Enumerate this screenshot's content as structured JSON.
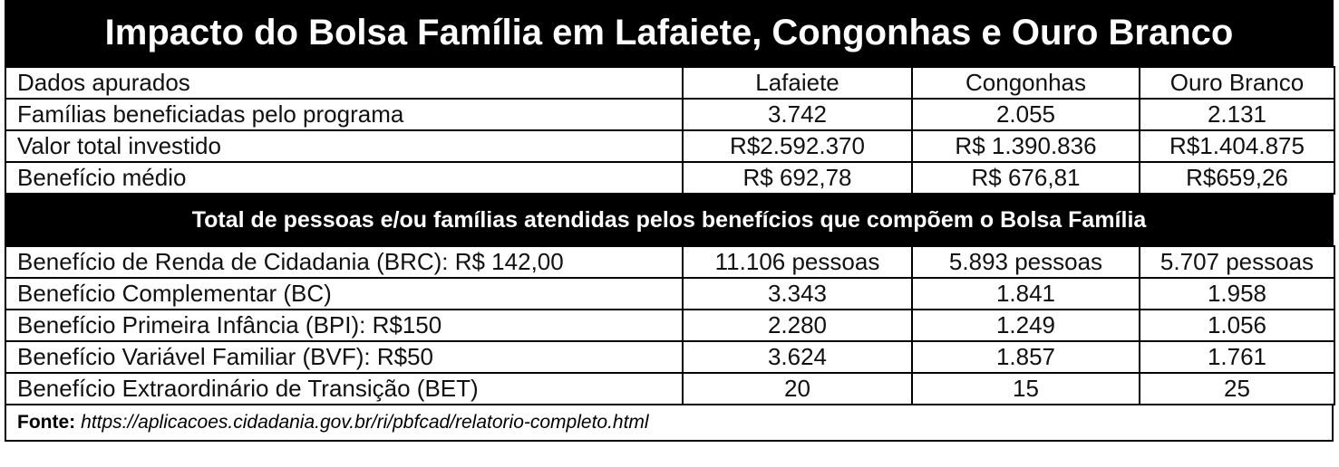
{
  "title": "Impacto do Bolsa Família em Lafaiete, Congonhas e Ouro Branco",
  "table1": {
    "rows": [
      [
        "Dados apurados",
        "Lafaiete",
        "Congonhas",
        "Ouro Branco"
      ],
      [
        "Famílias beneficiadas pelo programa",
        "3.742",
        "2.055",
        "2.131"
      ],
      [
        "Valor total investido",
        "R$2.592.370",
        "R$ 1.390.836",
        "R$1.404.875"
      ],
      [
        "Benefício médio",
        "R$ 692,78",
        "R$ 676,81",
        "R$659,26"
      ]
    ]
  },
  "section_title": "Total de pessoas e/ou famílias atendidas pelos benefícios que compõem o Bolsa Família",
  "table2": {
    "rows": [
      [
        "Benefício de Renda de Cidadania (BRC): R$ 142,00",
        "11.106 pessoas",
        "5.893 pessoas",
        "5.707 pessoas"
      ],
      [
        "Benefício Complementar (BC)",
        "3.343",
        "1.841",
        "1.958"
      ],
      [
        "Benefício Primeira Infância (BPI): R$150",
        "2.280",
        "1.249",
        "1.056"
      ],
      [
        "Benefício Variável Familiar (BVF): R$50",
        "3.624",
        "1.857",
        "1.761"
      ],
      [
        "Benefício Extraordinário de Transição (BET)",
        "20",
        "15",
        "25"
      ]
    ]
  },
  "source": {
    "label": "Fonte:",
    "url": "https://aplicacoes.cidadania.gov.br/ri/pbfcad/relatorio-completo.html"
  }
}
